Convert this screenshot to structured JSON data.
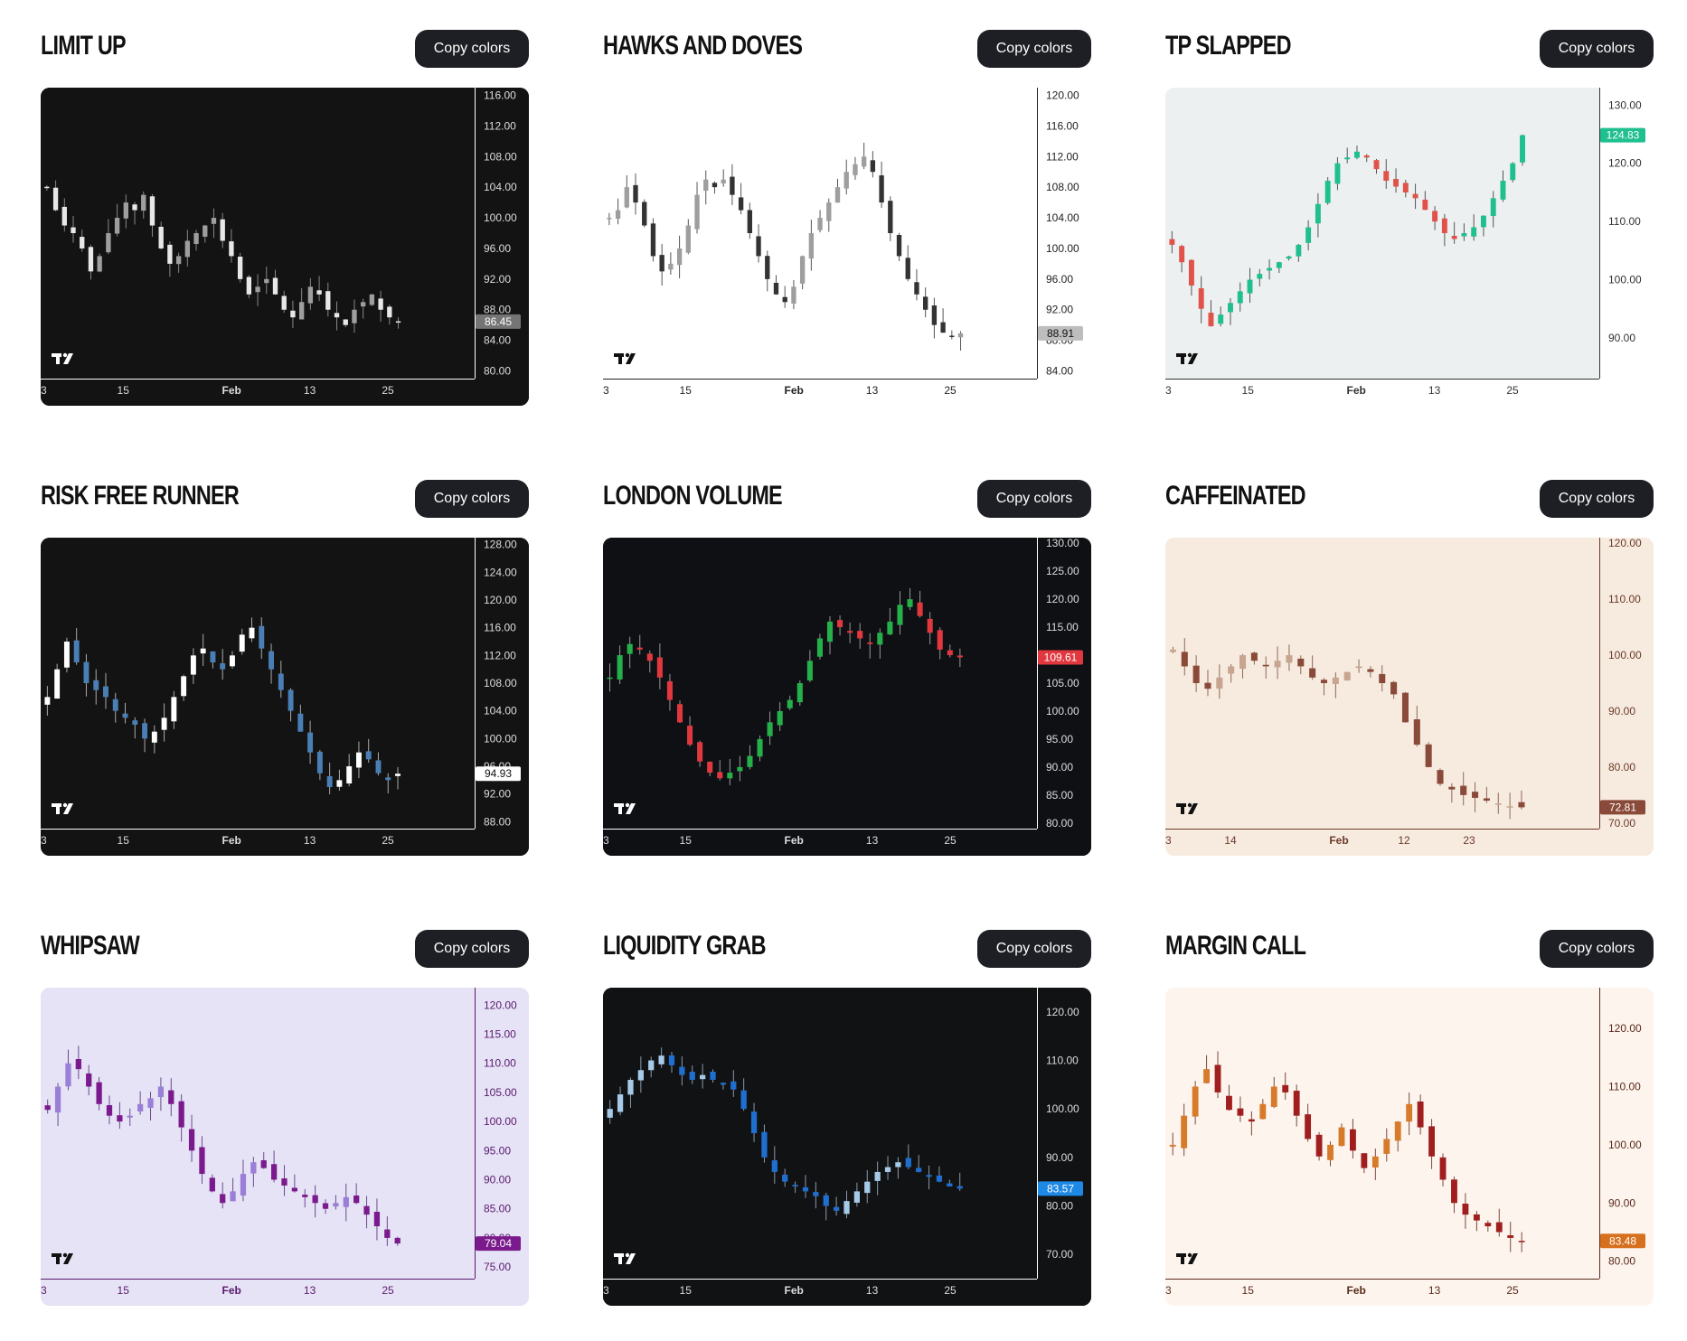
{
  "copy_label": "Copy colors",
  "x_ticks": [
    {
      "label": "3",
      "pos": 0.0,
      "bold": false
    },
    {
      "label": "15",
      "pos": 0.19,
      "bold": false
    },
    {
      "label": "Feb",
      "pos": 0.44,
      "bold": true
    },
    {
      "label": "13",
      "pos": 0.62,
      "bold": false
    },
    {
      "label": "25",
      "pos": 0.8,
      "bold": false
    }
  ],
  "themes": [
    {
      "name": "LIMIT UP",
      "bg": "#131313",
      "axis_bg": "#131313",
      "text": "#dddddd",
      "axis_line": "#ffffff",
      "up": "#9e9e9e",
      "down": "#e8e8e8",
      "badge_bg": "#757575",
      "badge_text": "#ffffff",
      "wick": "#888888",
      "logo": "#ffffff",
      "y_ticks": [
        "116.00",
        "112.00",
        "108.00",
        "104.00",
        "100.00",
        "96.00",
        "92.00",
        "88.00",
        "84.00",
        "80.00"
      ],
      "y_range": [
        79,
        117
      ],
      "price": "86.45",
      "plot_inset": 0,
      "series": [
        104,
        101,
        99,
        98,
        96,
        93,
        95,
        98,
        100,
        102,
        101,
        103,
        99,
        96,
        94,
        95,
        97,
        98,
        99,
        100,
        97,
        95,
        92,
        90,
        91,
        92,
        90,
        88,
        87,
        89,
        91,
        90,
        88,
        87,
        86,
        88,
        89,
        90,
        88,
        87,
        86.45
      ],
      "x_ticks_override": null
    },
    {
      "name": "HAWKS AND DOVES",
      "bg": "#ffffff",
      "axis_bg": "#ffffff",
      "text": "#222222",
      "axis_line": "#222222",
      "up": "#9e9e9e",
      "down": "#333333",
      "badge_bg": "#bdbdbd",
      "badge_text": "#111111",
      "wick": "#555555",
      "logo": "#111111",
      "y_ticks": [
        "120.00",
        "116.00",
        "112.00",
        "108.00",
        "104.00",
        "100.00",
        "96.00",
        "92.00",
        "88.00",
        "84.00"
      ],
      "y_range": [
        83,
        121
      ],
      "price": "88.91",
      "plot_inset": 0,
      "series": [
        104,
        105,
        108,
        106,
        103,
        99,
        97,
        98,
        100,
        103,
        107,
        109,
        108,
        109,
        107,
        105,
        102,
        99,
        96,
        94,
        93,
        95,
        99,
        102,
        104,
        106,
        108,
        110,
        111,
        112,
        110,
        106,
        102,
        99,
        96,
        94,
        92,
        90,
        89,
        88.5,
        88.91
      ],
      "x_ticks_override": null
    },
    {
      "name": "TP SLAPPED",
      "bg": "#edf0f0",
      "axis_bg": "#ffffff",
      "text": "#333333",
      "axis_line": "#333333",
      "up": "#1fbf8f",
      "down": "#e0524a",
      "badge_bg": "#1fbf8f",
      "badge_text": "#ffffff",
      "wick": "#555555",
      "logo": "#111111",
      "y_ticks": [
        "130.00",
        "120.00",
        "110.00",
        "100.00",
        "90.00"
      ],
      "y_range": [
        83,
        133
      ],
      "price": "124.83",
      "plot_inset": 1,
      "series": [
        106,
        103,
        99,
        95,
        92,
        94,
        96,
        98,
        100,
        101,
        102,
        103,
        104,
        106,
        109,
        113,
        117,
        120,
        121,
        122,
        121,
        119,
        117,
        116,
        115,
        114,
        112,
        110,
        108,
        107,
        108,
        109,
        111,
        114,
        117,
        120,
        124.83
      ],
      "x_ticks_override": null
    },
    {
      "name": "RISK FREE RUNNER",
      "bg": "#131313",
      "axis_bg": "#131313",
      "text": "#dddddd",
      "axis_line": "#ffffff",
      "up": "#ffffff",
      "down": "#4a7fb5",
      "badge_bg": "#ffffff",
      "badge_text": "#111111",
      "wick": "#aaaaaa",
      "logo": "#ffffff",
      "y_ticks": [
        "128.00",
        "124.00",
        "120.00",
        "116.00",
        "112.00",
        "108.00",
        "104.00",
        "100.00",
        "96.00",
        "92.00",
        "88.00"
      ],
      "y_range": [
        87,
        129
      ],
      "price": "94.93",
      "plot_inset": 0,
      "series": [
        106,
        110,
        114,
        111,
        108,
        107,
        106,
        104,
        103,
        102,
        100,
        101,
        103,
        106,
        109,
        112,
        113,
        111,
        110,
        112,
        115,
        116,
        113,
        110,
        107,
        104,
        101,
        98,
        95,
        93,
        94,
        96,
        98,
        97,
        95,
        94,
        94.93
      ],
      "x_ticks_override": null
    },
    {
      "name": "LONDON VOLUME",
      "bg": "#0e1014",
      "axis_bg": "#0e1014",
      "text": "#dddddd",
      "axis_line": "#ffffff",
      "up": "#26b04a",
      "down": "#e0383e",
      "badge_bg": "#e0383e",
      "badge_text": "#ffffff",
      "wick": "#999999",
      "logo": "#ffffff",
      "y_ticks": [
        "130.00",
        "125.00",
        "120.00",
        "115.00",
        "110.00",
        "105.00",
        "100.00",
        "95.00",
        "90.00",
        "85.00",
        "80.00"
      ],
      "y_range": [
        79,
        131
      ],
      "price": "109.61",
      "plot_inset": 0,
      "series": [
        106,
        110,
        112,
        111,
        109,
        106,
        102,
        98,
        94,
        91,
        89,
        88,
        89,
        90,
        92,
        95,
        98,
        100,
        102,
        105,
        109,
        113,
        116,
        115,
        114,
        113,
        112,
        114,
        116,
        119,
        120,
        117,
        114,
        111,
        110,
        109.61
      ],
      "x_ticks_override": null
    },
    {
      "name": "CAFFEINATED",
      "bg": "#f7ebdf",
      "axis_bg": "#f7ebdf",
      "text": "#6b3a2a",
      "axis_line": "#6b3a2a",
      "up": "#c8a591",
      "down": "#8a4a3a",
      "badge_bg": "#8a4a3a",
      "badge_text": "#ffffff",
      "wick": "#8a6a5a",
      "logo": "#111111",
      "y_ticks": [
        "120.00",
        "110.00",
        "100.00",
        "90.00",
        "80.00",
        "70.00"
      ],
      "y_range": [
        69,
        121
      ],
      "price": "72.81",
      "plot_inset": 1,
      "series": [
        101,
        98,
        95,
        94,
        96,
        98,
        100,
        99,
        98,
        99,
        100,
        98,
        96,
        95,
        96,
        97,
        98,
        97,
        95,
        93,
        88,
        84,
        80,
        77,
        76,
        75,
        74.5,
        74,
        73.5,
        73,
        72.81
      ],
      "x_ticks_override": [
        {
          "label": "3",
          "pos": 0.0,
          "bold": false
        },
        {
          "label": "14",
          "pos": 0.15,
          "bold": false
        },
        {
          "label": "Feb",
          "pos": 0.4,
          "bold": true
        },
        {
          "label": "12",
          "pos": 0.55,
          "bold": false
        },
        {
          "label": "23",
          "pos": 0.7,
          "bold": false
        }
      ]
    },
    {
      "name": "WHIPSAW",
      "bg": "#e6e3f7",
      "axis_bg": "#e6e3f7",
      "text": "#5a1a6a",
      "axis_line": "#5a1a6a",
      "up": "#9a7fd6",
      "down": "#7b1a8c",
      "badge_bg": "#7b1a8c",
      "badge_text": "#ffffff",
      "wick": "#6a4a8a",
      "logo": "#111111",
      "y_ticks": [
        "120.00",
        "115.00",
        "110.00",
        "105.00",
        "100.00",
        "95.00",
        "90.00",
        "85.00",
        "80.00",
        "75.00"
      ],
      "y_range": [
        73,
        123
      ],
      "price": "79.04",
      "plot_inset": 0,
      "series": [
        102,
        106,
        110,
        109,
        106,
        103,
        101,
        100,
        101,
        103,
        104,
        106,
        103,
        99,
        95,
        91,
        88,
        86,
        88,
        91,
        93,
        92,
        90,
        89,
        88,
        87,
        86,
        85,
        86,
        87,
        86,
        84,
        82,
        80,
        79.04
      ],
      "x_ticks_override": null
    },
    {
      "name": "LIQUIDITY GRAB",
      "bg": "#111214",
      "axis_bg": "#111214",
      "text": "#dddddd",
      "axis_line": "#ffffff",
      "up": "#a6cbe8",
      "down": "#1e6fd0",
      "badge_bg": "#1e88e5",
      "badge_text": "#ffffff",
      "wick": "#8a9aaa",
      "logo": "#ffffff",
      "y_ticks": [
        "120.00",
        "110.00",
        "100.00",
        "90.00",
        "80.00",
        "70.00"
      ],
      "y_range": [
        65,
        125
      ],
      "price": "83.57",
      "plot_inset": 0,
      "series": [
        100,
        103,
        106,
        108,
        110,
        111,
        109,
        107,
        106,
        107,
        106,
        105,
        104,
        100,
        95,
        90,
        87,
        85,
        84,
        83,
        82,
        80,
        79,
        81,
        83,
        85,
        87,
        88,
        89,
        88,
        87,
        86,
        85,
        84,
        83.57
      ],
      "x_ticks_override": null
    },
    {
      "name": "MARGIN CALL",
      "bg": "#fdf4ee",
      "axis_bg": "#fdf4ee",
      "text": "#5a2a1a",
      "axis_line": "#5a2a1a",
      "up": "#d77a2a",
      "down": "#a01e1e",
      "badge_bg": "#d7701e",
      "badge_text": "#ffffff",
      "wick": "#7a4a3a",
      "logo": "#111111",
      "y_ticks": [
        "120.00",
        "110.00",
        "100.00",
        "90.00",
        "80.00"
      ],
      "y_range": [
        77,
        127
      ],
      "price": "83.48",
      "plot_inset": 1,
      "series": [
        100,
        105,
        110,
        113,
        109,
        106,
        105,
        104,
        107,
        110,
        109,
        105,
        101,
        98,
        100,
        103,
        99,
        96,
        98,
        101,
        104,
        107,
        103,
        98,
        94,
        90,
        88,
        87,
        86,
        85,
        84,
        83.48
      ],
      "x_ticks_override": null
    }
  ]
}
